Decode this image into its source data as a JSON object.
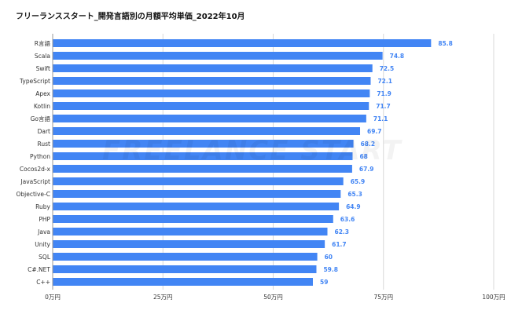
{
  "chart_data": {
    "type": "bar",
    "orientation": "horizontal",
    "title": "フリーランススタート_開発言語別の月額平均単価_2022年10月",
    "categories": [
      "R言語",
      "Scala",
      "Swift",
      "TypeScript",
      "Apex",
      "Kotlin",
      "Go言語",
      "Dart",
      "Rust",
      "Python",
      "Cocos2d-x",
      "JavaScript",
      "Objective-C",
      "Ruby",
      "PHP",
      "Java",
      "Unity",
      "SQL",
      "C#.NET",
      "C++"
    ],
    "values": [
      85.8,
      74.8,
      72.5,
      72.1,
      71.9,
      71.7,
      71.1,
      69.7,
      68.2,
      68,
      67.9,
      65.9,
      65.3,
      64.9,
      63.6,
      62.3,
      61.7,
      60,
      59.8,
      59
    ],
    "data_labels": [
      "85.8",
      "74.8",
      "72.5",
      "72.1",
      "71.9",
      "71.7",
      "71.1",
      "69.7",
      "68.2",
      "68",
      "67.9",
      "65.9",
      "65.3",
      "64.9",
      "63.6",
      "62.3",
      "61.7",
      "60",
      "59.8",
      "59"
    ],
    "xticks": [
      0,
      25,
      50,
      75,
      100
    ],
    "xtick_labels": [
      "0万円",
      "25万円",
      "50万円",
      "75万円",
      "100万円"
    ],
    "xlim": [
      0,
      100
    ],
    "grid": true,
    "bar_color": "#4285f4",
    "label_color": "#4285f4",
    "xlabel": "",
    "ylabel": ""
  },
  "watermark": "FREELANCE START"
}
